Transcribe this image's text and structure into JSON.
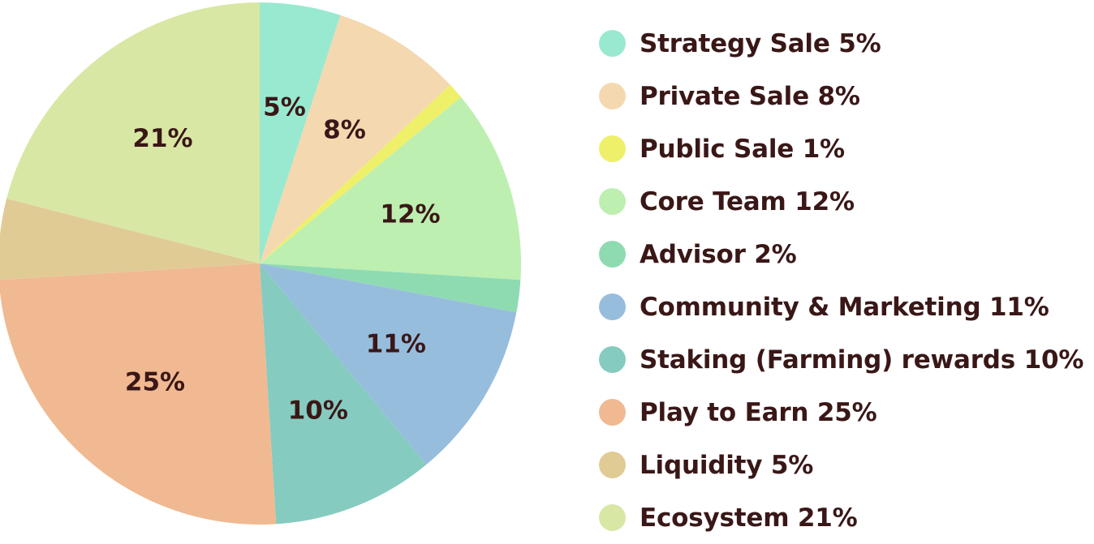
{
  "chart_data": {
    "type": "pie",
    "start_angle": "12 o'clock",
    "direction": "clockwise",
    "legend_position": "right",
    "slices": [
      {
        "name": "Strategy Sale",
        "value": 5,
        "label": "5%",
        "legend": "Strategy Sale 5%",
        "color": "#98e9d0"
      },
      {
        "name": "Private Sale",
        "value": 8,
        "label": "8%",
        "legend": "Private Sale 8%",
        "color": "#f4d8b0"
      },
      {
        "name": "Public Sale",
        "value": 1,
        "label": "",
        "legend": "Public Sale 1%",
        "color": "#eef06a"
      },
      {
        "name": "Core Team",
        "value": 12,
        "label": "12%",
        "legend": "Core Team 12%",
        "color": "#bdefb1"
      },
      {
        "name": "Advisor",
        "value": 2,
        "label": "",
        "legend": "Advisor 2%",
        "color": "#8edbb1"
      },
      {
        "name": "Community & Marketing",
        "value": 11,
        "label": "11%",
        "legend": "Community & Marketing 11%",
        "color": "#97bddd"
      },
      {
        "name": "Staking (Farming) rewards",
        "value": 10,
        "label": "10%",
        "legend": "Staking (Farming) rewards 10%",
        "color": "#85cbc0"
      },
      {
        "name": "Play to Earn",
        "value": 25,
        "label": "25%",
        "legend": "Play to Earn 25%",
        "color": "#f0b991"
      },
      {
        "name": "Liquidity",
        "value": 5,
        "label": "",
        "legend": "Liquidity 5%",
        "color": "#e1cb95"
      },
      {
        "name": "Ecosystem",
        "value": 21,
        "label": "21%",
        "legend": "Ecosystem 21%",
        "color": "#d8e8a4"
      }
    ]
  }
}
